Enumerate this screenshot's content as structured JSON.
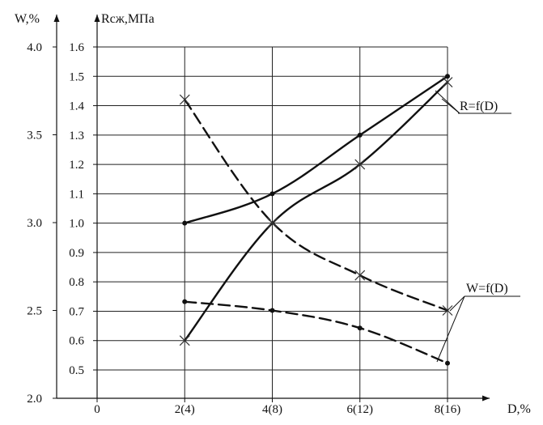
{
  "chart_data": {
    "type": "line",
    "x_axis": {
      "label": "D,%",
      "tick_labels": [
        "0",
        "2(4)",
        "4(8)",
        "6(12)",
        "8(16)"
      ],
      "ticks": [
        0,
        2,
        4,
        6,
        8
      ],
      "range": [
        0,
        8
      ]
    },
    "y_left_outer": {
      "label": "W,%",
      "tick_labels": [
        "2.0",
        "2.5",
        "3.0",
        "3.5",
        "4.0"
      ],
      "ticks": [
        2.0,
        2.5,
        3.0,
        3.5,
        4.0
      ],
      "range": [
        2.0,
        4.0
      ]
    },
    "y_left_inner": {
      "label": "Rсж,МПа",
      "tick_labels": [
        "0.5",
        "0.6",
        "0.7",
        "0.8",
        "0.9",
        "1.0",
        "1.1",
        "1.2",
        "1.3",
        "1.4",
        "1.5",
        "1.6"
      ],
      "ticks": [
        0.5,
        0.6,
        0.7,
        0.8,
        0.9,
        1.0,
        1.1,
        1.2,
        1.3,
        1.4,
        1.5,
        1.6
      ],
      "range": [
        0.5,
        1.6
      ]
    },
    "grid": true,
    "series": [
      {
        "group": "R=f(D)",
        "style": "solid",
        "marker": "dot",
        "axis": "R",
        "x": [
          2,
          4,
          6,
          8
        ],
        "y": [
          1.0,
          1.1,
          1.3,
          1.5
        ]
      },
      {
        "group": "R=f(D)",
        "style": "solid",
        "marker": "x",
        "axis": "R",
        "x": [
          2,
          4,
          6,
          8
        ],
        "y": [
          0.6,
          1.0,
          1.2,
          1.48
        ]
      },
      {
        "group": "W=f(D)",
        "style": "dashed",
        "marker": "x",
        "axis": "W",
        "x": [
          2,
          4,
          6,
          8
        ],
        "y": [
          3.7,
          3.0,
          2.7,
          2.5
        ]
      },
      {
        "group": "W=f(D)",
        "style": "dashed",
        "marker": "dot",
        "axis": "W",
        "x": [
          2,
          4,
          6,
          8
        ],
        "y": [
          2.55,
          2.5,
          2.4,
          2.2
        ]
      }
    ],
    "annotations": [
      "R=f(D)",
      "W=f(D)"
    ]
  }
}
